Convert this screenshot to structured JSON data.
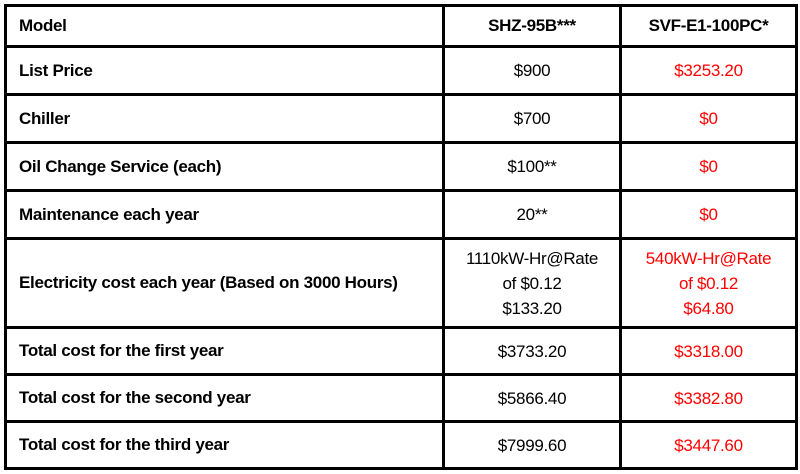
{
  "table": {
    "name": "model-cost-comparison",
    "colors": {
      "text": "#000000",
      "highlight_red": "#FF0000",
      "border": "#000000",
      "background": "#FFFFFF"
    },
    "columns": [
      {
        "label": "Model"
      },
      {
        "label": "SHZ-95B***"
      },
      {
        "label": "SVF-E1-100PC*"
      }
    ],
    "rows": [
      {
        "label": "List Price",
        "shz": [
          "$900"
        ],
        "svf": [
          "$3253.20"
        ],
        "kind": "data"
      },
      {
        "label": "Chiller",
        "shz": [
          "$700"
        ],
        "svf": [
          "$0"
        ],
        "kind": "data"
      },
      {
        "label": "Oil Change Service (each)",
        "shz": [
          "$100**"
        ],
        "svf": [
          "$0"
        ],
        "kind": "data"
      },
      {
        "label": "Maintenance each year",
        "shz": [
          "20**"
        ],
        "svf": [
          "$0"
        ],
        "kind": "data"
      },
      {
        "label": "Electricity cost each year (Based on 3000 Hours)",
        "shz": [
          "1110kW-Hr@Rate",
          "of $0.12",
          "$133.20"
        ],
        "svf": [
          "540kW-Hr@Rate",
          "of $0.12",
          "$64.80"
        ],
        "kind": "tall"
      },
      {
        "label": "Total cost for the first year",
        "shz": [
          "$3733.20"
        ],
        "svf": [
          "$3318.00"
        ],
        "kind": "total"
      },
      {
        "label": "Total cost for the second year",
        "shz": [
          "$5866.40"
        ],
        "svf": [
          "$3382.80"
        ],
        "kind": "total"
      },
      {
        "label": "Total cost for the third year",
        "shz": [
          "$7999.60"
        ],
        "svf": [
          "$3447.60"
        ],
        "kind": "total"
      }
    ]
  }
}
